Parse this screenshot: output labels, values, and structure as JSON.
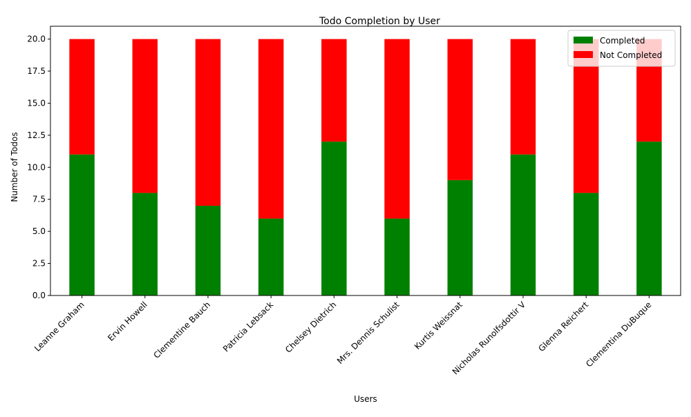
{
  "chart_data": {
    "type": "bar",
    "stacked": true,
    "title": "Todo Completion by User",
    "xlabel": "Users",
    "ylabel": "Number of Todos",
    "categories": [
      "Leanne Graham",
      "Ervin Howell",
      "Clementine Bauch",
      "Patricia Lebsack",
      "Chelsey Dietrich",
      "Mrs. Dennis Schulist",
      "Kurtis Weissnat",
      "Nicholas Runolfsdottir V",
      "Glenna Reichert",
      "Clementina DuBuque"
    ],
    "series": [
      {
        "name": "Completed",
        "color": "#008000",
        "values": [
          11,
          8,
          7,
          6,
          12,
          6,
          9,
          11,
          8,
          12
        ]
      },
      {
        "name": "Not Completed",
        "color": "#ff0000",
        "values": [
          9,
          12,
          13,
          14,
          8,
          14,
          11,
          9,
          12,
          8
        ]
      }
    ],
    "ylim": [
      0,
      21
    ],
    "yticks": [
      "0.0",
      "2.5",
      "5.0",
      "7.5",
      "10.0",
      "12.5",
      "15.0",
      "17.5",
      "20.0"
    ],
    "grid": false,
    "legend_position": "top-right"
  }
}
